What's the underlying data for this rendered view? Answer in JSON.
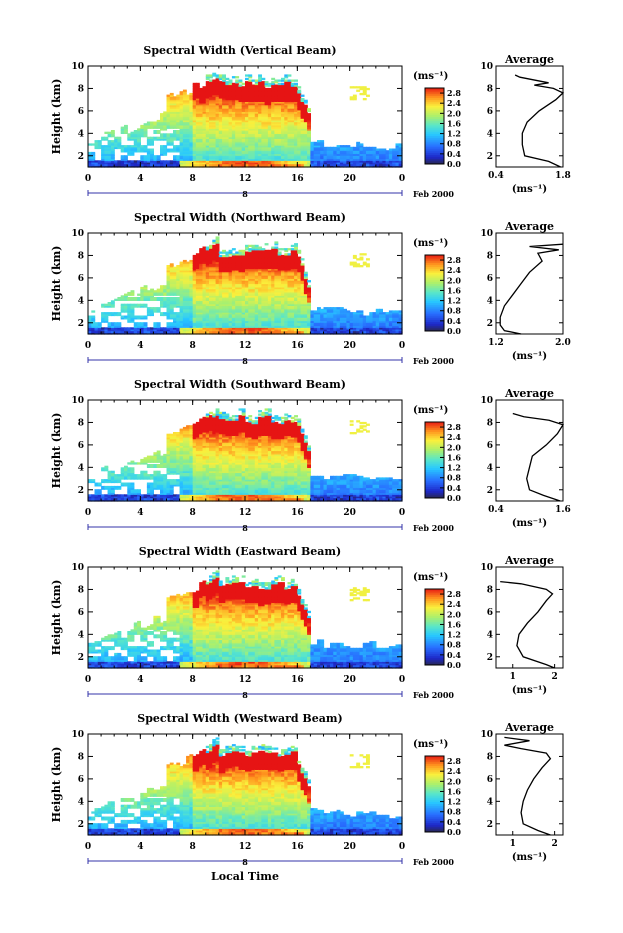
{
  "chart_data": {
    "type": "heatmap",
    "x_axis": {
      "label": "Local Time",
      "ticks": [
        "0",
        "4",
        "8",
        "12",
        "16",
        "20",
        "0"
      ],
      "range": [
        0,
        24
      ]
    },
    "y_axis": {
      "label": "Height (km)",
      "ticks": [
        "2",
        "4",
        "6",
        "8",
        "10"
      ],
      "range": [
        1,
        10
      ]
    },
    "day_label": "8",
    "date_label": "Feb 2000",
    "colorbar": {
      "unit": "(ms⁻¹)",
      "ticks": [
        "0.0",
        "0.4",
        "0.8",
        "1.2",
        "1.6",
        "2.0",
        "2.4",
        "2.8"
      ],
      "range": [
        0,
        3.0
      ]
    },
    "average_title": "Average",
    "average_unit": "(ms⁻¹)",
    "panels": [
      {
        "title": "Spectral Width (Vertical Beam)",
        "avg_xticks": [
          "0.4",
          "1.8"
        ],
        "avg_xrange": [
          0.4,
          1.8
        ],
        "avg_profile": [
          [
            1.0,
            1.75
          ],
          [
            1.5,
            1.5
          ],
          [
            2.0,
            1.0
          ],
          [
            3.0,
            0.95
          ],
          [
            4.0,
            0.95
          ],
          [
            5.0,
            1.05
          ],
          [
            6.0,
            1.3
          ],
          [
            7.0,
            1.65
          ],
          [
            7.6,
            1.8
          ],
          [
            8.0,
            1.6
          ],
          [
            8.3,
            1.2
          ],
          [
            8.5,
            1.5
          ],
          [
            9.0,
            0.9
          ],
          [
            9.2,
            0.8
          ]
        ]
      },
      {
        "title": "Spectral Width (Northward Beam)",
        "avg_xticks": [
          "1.2",
          "2.0"
        ],
        "avg_xrange": [
          1.2,
          2.0
        ],
        "avg_profile": [
          [
            1.0,
            1.5
          ],
          [
            1.3,
            1.3
          ],
          [
            1.8,
            1.25
          ],
          [
            2.5,
            1.25
          ],
          [
            3.5,
            1.3
          ],
          [
            4.5,
            1.4
          ],
          [
            5.5,
            1.5
          ],
          [
            6.5,
            1.6
          ],
          [
            7.5,
            1.75
          ],
          [
            8.2,
            1.7
          ],
          [
            8.5,
            1.95
          ],
          [
            8.8,
            1.6
          ],
          [
            9.0,
            2.0
          ]
        ]
      },
      {
        "title": "Spectral Width (Southward Beam)",
        "avg_xticks": [
          "0.4",
          "1.6"
        ],
        "avg_xrange": [
          0.4,
          1.6
        ],
        "avg_profile": [
          [
            1.0,
            1.55
          ],
          [
            1.5,
            1.25
          ],
          [
            2.0,
            1.0
          ],
          [
            3.0,
            0.95
          ],
          [
            4.0,
            1.0
          ],
          [
            5.0,
            1.05
          ],
          [
            6.0,
            1.3
          ],
          [
            7.0,
            1.5
          ],
          [
            7.8,
            1.6
          ],
          [
            8.2,
            1.35
          ],
          [
            8.5,
            0.9
          ],
          [
            8.8,
            0.7
          ]
        ]
      },
      {
        "title": "Spectral Width (Eastward Beam)",
        "avg_xticks": [
          "1",
          "2"
        ],
        "avg_xrange": [
          0.6,
          2.2
        ],
        "avg_profile": [
          [
            1.0,
            2.0
          ],
          [
            1.3,
            1.8
          ],
          [
            2.0,
            1.25
          ],
          [
            3.0,
            1.1
          ],
          [
            4.0,
            1.15
          ],
          [
            5.0,
            1.35
          ],
          [
            6.0,
            1.6
          ],
          [
            7.0,
            1.8
          ],
          [
            7.6,
            1.95
          ],
          [
            8.0,
            1.8
          ],
          [
            8.5,
            1.2
          ],
          [
            8.7,
            0.7
          ]
        ]
      },
      {
        "title": "Spectral Width (Westward Beam)",
        "avg_xticks": [
          "1",
          "2"
        ],
        "avg_xrange": [
          0.6,
          2.2
        ],
        "avg_profile": [
          [
            1.0,
            1.9
          ],
          [
            1.4,
            1.6
          ],
          [
            2.0,
            1.25
          ],
          [
            3.0,
            1.2
          ],
          [
            4.0,
            1.25
          ],
          [
            5.0,
            1.35
          ],
          [
            6.0,
            1.5
          ],
          [
            7.0,
            1.7
          ],
          [
            7.8,
            1.9
          ],
          [
            8.3,
            1.8
          ],
          [
            8.7,
            1.2
          ],
          [
            9.0,
            0.8
          ],
          [
            9.4,
            1.4
          ],
          [
            9.7,
            0.8
          ]
        ]
      }
    ]
  }
}
